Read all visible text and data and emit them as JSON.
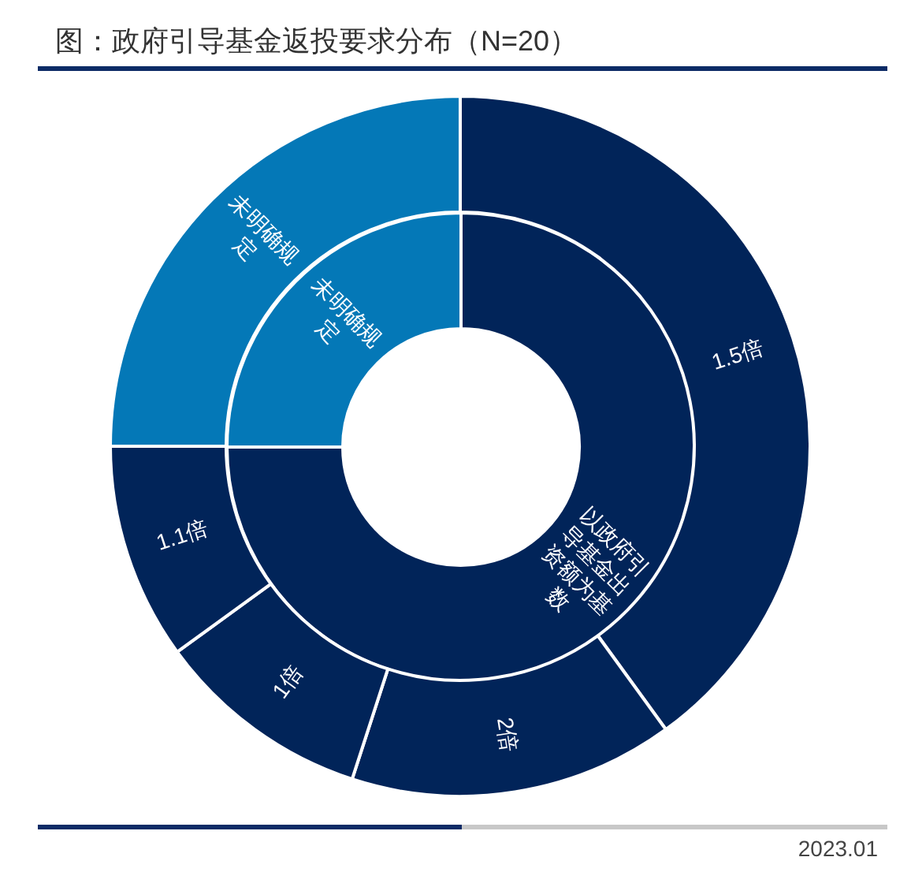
{
  "chart_data": [
    {
      "type": "donut",
      "title": "图：政府引导基金返投要求分布（N=20）",
      "categories": [
        "以政府引导基金出资额为基数",
        "未明确规定"
      ],
      "values": [
        75,
        25
      ],
      "colors": [
        "#012459",
        "#0478b7"
      ],
      "annotations": [
        "2023.01"
      ]
    },
    {
      "type": "donut",
      "categories": [
        "1.5倍",
        "2倍",
        "1倍",
        "1.1倍",
        "未明确规定"
      ],
      "values": [
        40,
        15,
        10,
        10,
        25
      ],
      "colors": [
        "#012459",
        "#012459",
        "#012459",
        "#012459",
        "#0478b7"
      ]
    }
  ]
}
